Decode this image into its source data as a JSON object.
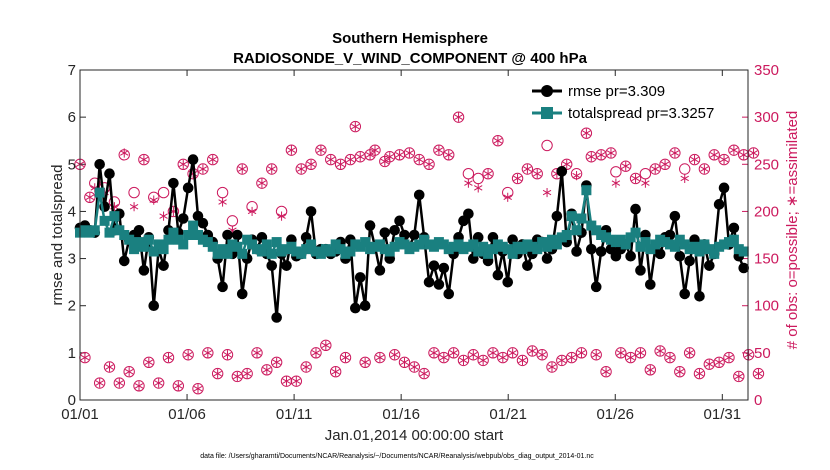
{
  "chart_data": {
    "type": "line",
    "title_line1": "Southern Hemisphere",
    "title_line2": "RADIOSONDE_V_WIND_COMPONENT @ 400 hPa",
    "xlabel": "Jan.01,2014 00:00:00 start",
    "ylabel_left": "rmse and totalspread",
    "ylabel_right": "# of obs: o=possible; ∗=assimilated",
    "footer": "data file: /Users/gharamti/Documents/NCAR/Reanalysis/~/Documents/NCAR/Reanalysis/webpub/obs_diag_output_2014-01.nc",
    "xlim": [
      1,
      32.2
    ],
    "xticks": [
      1,
      6,
      11,
      16,
      21,
      26,
      31
    ],
    "xtick_labels": [
      "01/01",
      "01/06",
      "01/11",
      "01/16",
      "01/21",
      "01/26",
      "01/31"
    ],
    "ylim_left": [
      0,
      7
    ],
    "yticks_left": [
      "0",
      "1",
      "2",
      "3",
      "4",
      "5",
      "6",
      "7"
    ],
    "ylim_right": [
      0,
      350
    ],
    "yticks_right": [
      "0",
      "50",
      "100",
      "150",
      "200",
      "250",
      "300",
      "350"
    ],
    "colors": {
      "rmse": "#000000",
      "spread": "#1a8080",
      "obs": "#cc1a5e"
    },
    "series": [
      {
        "name": "rmse",
        "legend": "rmse pr=3.309",
        "values": [
          3.65,
          3.7,
          3.6,
          3.55,
          5.0,
          4.1,
          4.8,
          3.6,
          3.95,
          2.95,
          3.4,
          3.5,
          3.6,
          2.75,
          3.45,
          2.0,
          3.2,
          2.85,
          3.6,
          4.6,
          3.55,
          3.85,
          4.5,
          5.1,
          3.9,
          3.75,
          3.5,
          3.35,
          3.0,
          2.4,
          3.5,
          3.1,
          3.5,
          2.25,
          3.0,
          3.4,
          3.2,
          3.45,
          3.1,
          2.85,
          1.75,
          3.1,
          2.85,
          3.4,
          3.05,
          3.1,
          3.45,
          4.0,
          3.1,
          3.2,
          3.2,
          3.1,
          3.15,
          3.35,
          3.0,
          3.4,
          1.95,
          2.6,
          2.0,
          3.7,
          3.25,
          2.75,
          3.55,
          3.0,
          3.6,
          3.8,
          3.5,
          3.25,
          3.5,
          4.35,
          3.45,
          2.5,
          2.85,
          2.45,
          2.8,
          2.25,
          3.1,
          3.45,
          3.8,
          3.95,
          3.0,
          3.45,
          3.1,
          2.95,
          3.45,
          2.65,
          3.15,
          2.5,
          3.4,
          3.1,
          3.3,
          2.85,
          3.1,
          3.4,
          3.35,
          3.0,
          3.2,
          3.9,
          4.85,
          3.35,
          3.95,
          3.15,
          3.55,
          4.55,
          3.2,
          2.4,
          3.15,
          3.6,
          3.2,
          3.05,
          3.2,
          3.3,
          3.05,
          4.05,
          2.75,
          3.5,
          2.45,
          3.2,
          3.1,
          3.45,
          3.5,
          3.9,
          3.05,
          2.25,
          2.95,
          3.4,
          2.2,
          3.3,
          2.85,
          3.1,
          4.15,
          4.5,
          3.3,
          3.65,
          3.05,
          2.8
        ]
      },
      {
        "name": "totalspread",
        "legend": "totalspread pr=3.3257",
        "values": [
          3.55,
          3.6,
          3.55,
          3.6,
          4.4,
          3.8,
          3.55,
          3.9,
          3.6,
          3.5,
          3.4,
          3.2,
          3.35,
          3.25,
          3.4,
          3.15,
          3.3,
          3.2,
          3.4,
          3.55,
          3.4,
          3.3,
          3.5,
          3.7,
          3.5,
          3.4,
          3.35,
          3.25,
          3.1,
          3.2,
          3.1,
          3.3,
          3.25,
          3.1,
          3.4,
          3.3,
          3.2,
          3.15,
          3.3,
          3.1,
          3.35,
          3.15,
          3.2,
          3.25,
          3.15,
          3.1,
          3.2,
          3.3,
          3.15,
          3.1,
          3.2,
          3.15,
          3.3,
          3.2,
          3.1,
          3.15,
          3.3,
          3.25,
          3.35,
          3.2,
          3.25,
          3.3,
          3.2,
          3.15,
          3.25,
          3.35,
          3.3,
          3.2,
          3.25,
          3.3,
          3.4,
          3.3,
          3.25,
          3.35,
          3.3,
          3.2,
          3.25,
          3.3,
          3.2,
          3.25,
          3.3,
          3.15,
          3.25,
          3.1,
          3.2,
          3.3,
          3.25,
          3.2,
          3.1,
          3.25,
          3.2,
          3.3,
          3.25,
          3.2,
          3.35,
          3.25,
          3.4,
          3.3,
          3.45,
          3.5,
          3.9,
          3.6,
          3.85,
          4.45,
          3.7,
          3.6,
          3.5,
          3.45,
          3.4,
          3.35,
          3.4,
          3.3,
          3.45,
          3.55,
          3.25,
          3.35,
          3.2,
          3.3,
          3.4,
          3.35,
          3.3,
          3.25,
          3.4,
          3.3,
          3.2,
          3.25,
          3.15,
          3.3,
          3.2,
          3.1,
          3.25,
          3.3,
          3.35,
          3.4,
          3.2,
          3.15
        ]
      },
      {
        "name": "obs_possible",
        "values": [
          250,
          45,
          215,
          230,
          18,
          225,
          35,
          210,
          18,
          260,
          30,
          220,
          15,
          255,
          40,
          215,
          18,
          220,
          45,
          200,
          15,
          250,
          48,
          240,
          12,
          245,
          50,
          255,
          28,
          220,
          48,
          190,
          25,
          245,
          28,
          205,
          50,
          230,
          32,
          245,
          40,
          200,
          20,
          265,
          20,
          245,
          35,
          250,
          50,
          265,
          58,
          255,
          30,
          250,
          45,
          255,
          290,
          258,
          40,
          260,
          265,
          45,
          253,
          258,
          48,
          260,
          40,
          262,
          35,
          255,
          28,
          250,
          50,
          265,
          45,
          260,
          50,
          300,
          42,
          240,
          48,
          235,
          42,
          240,
          50,
          275,
          45,
          220,
          50,
          235,
          42,
          245,
          52,
          240,
          48,
          270,
          35,
          240,
          42,
          250,
          45,
          240,
          50,
          283,
          258,
          48,
          260,
          30,
          262,
          242,
          50,
          248,
          45,
          235,
          50,
          240,
          32,
          245,
          52,
          250,
          45,
          262,
          30,
          245,
          50,
          255,
          28,
          245,
          38,
          260,
          40,
          255,
          45,
          265,
          25,
          260,
          48,
          262,
          28
        ]
      },
      {
        "name": "obs_assimilated",
        "values": [
          250,
          45,
          215,
          225,
          18,
          220,
          35,
          205,
          18,
          262,
          30,
          205,
          15,
          255,
          40,
          212,
          18,
          195,
          45,
          200,
          15,
          250,
          48,
          240,
          12,
          245,
          50,
          255,
          28,
          210,
          48,
          180,
          25,
          245,
          28,
          200,
          50,
          230,
          32,
          245,
          40,
          195,
          20,
          265,
          20,
          245,
          35,
          250,
          50,
          265,
          58,
          255,
          30,
          250,
          45,
          255,
          290,
          258,
          40,
          260,
          265,
          45,
          253,
          258,
          48,
          260,
          40,
          262,
          35,
          255,
          28,
          250,
          50,
          265,
          45,
          260,
          50,
          300,
          42,
          230,
          48,
          225,
          42,
          240,
          50,
          275,
          45,
          215,
          50,
          235,
          42,
          245,
          52,
          240,
          48,
          220,
          35,
          240,
          42,
          250,
          45,
          238,
          50,
          283,
          258,
          48,
          260,
          30,
          262,
          230,
          50,
          248,
          45,
          235,
          50,
          230,
          32,
          245,
          52,
          250,
          45,
          262,
          30,
          235,
          50,
          255,
          28,
          245,
          38,
          260,
          40,
          255,
          45,
          265,
          25,
          260,
          48,
          262,
          28
        ]
      }
    ]
  }
}
